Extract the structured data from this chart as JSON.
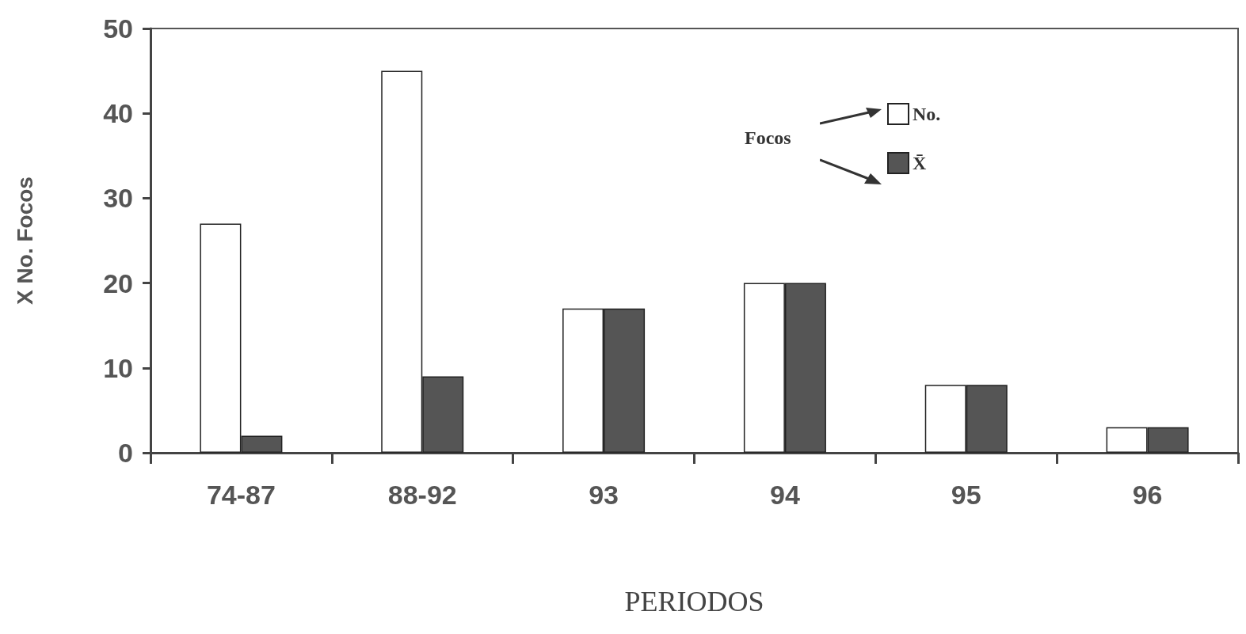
{
  "chart_data": {
    "type": "bar",
    "xlabel": "PERIODOS",
    "ylabel": "X No. Focos",
    "legend_title": "Focos",
    "categories": [
      "74-87",
      "88-92",
      "93",
      "94",
      "95",
      "96"
    ],
    "series": [
      {
        "name": "No.",
        "color": "#ffffff",
        "values": [
          27,
          45,
          17,
          20,
          8,
          3
        ]
      },
      {
        "name": "X̄",
        "color": "#555555",
        "values": [
          2,
          9,
          17,
          20,
          8,
          3
        ]
      }
    ],
    "ylim": [
      0,
      50
    ],
    "yticks": [
      0,
      10,
      20,
      30,
      40,
      50
    ],
    "grid": false,
    "legend": "top right"
  }
}
